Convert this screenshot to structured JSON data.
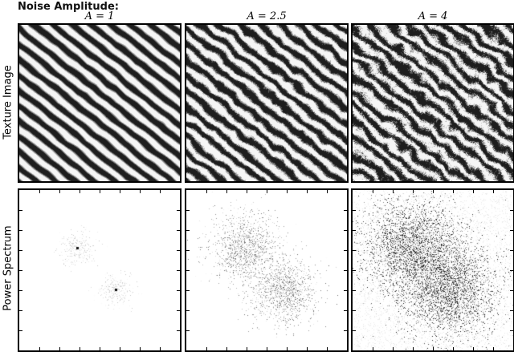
{
  "figure": {
    "suptitle": "Noise Amplitude:",
    "columns": [
      {
        "title": "A = 1",
        "noise_amplitude": 1
      },
      {
        "title": "A = 2.5",
        "noise_amplitude": 2.5
      },
      {
        "title": "A = 4",
        "noise_amplitude": 4
      }
    ],
    "rows": [
      {
        "label": "Texture Image"
      },
      {
        "label": "Power Spectrum"
      }
    ],
    "colormap": "gray",
    "colors": {
      "frame": "#000000",
      "background": "#ffffff"
    }
  }
}
